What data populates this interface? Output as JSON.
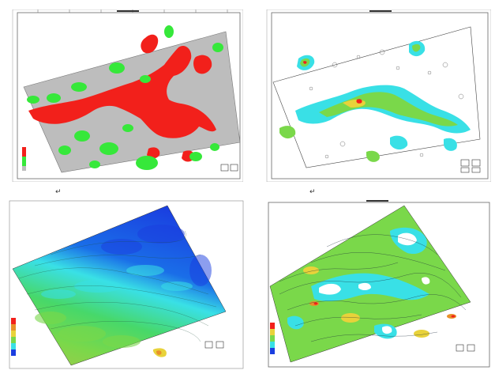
{
  "panels": [
    {
      "id": "tl",
      "kind": "binary-red-green"
    },
    {
      "id": "tr",
      "kind": "sparse-contour"
    },
    {
      "id": "bl",
      "kind": "blue-green-gradient"
    },
    {
      "id": "br",
      "kind": "dense-contour"
    }
  ],
  "marks": {
    "paragraph": "↵"
  },
  "colors": {
    "red": "#f2201b",
    "green": "#36e83a",
    "gray": "#bdbdbd",
    "blue_deep": "#1a3ee0",
    "cyan": "#39e0e6",
    "lime": "#7ad84a",
    "yellow": "#e8d23a",
    "orange": "#e8902a"
  },
  "icons": [
    "north-arrow-icon",
    "legend-bar-icon",
    "scale-icon"
  ]
}
